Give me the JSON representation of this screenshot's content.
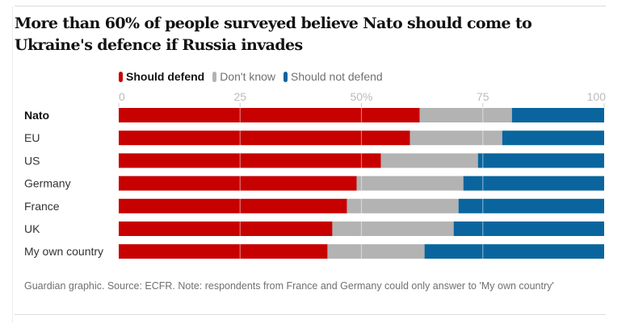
{
  "chart_data": {
    "type": "bar",
    "orientation": "horizontal",
    "stacked": true,
    "title": "More than 60% of people surveyed believe Nato should come to Ukraine's defence if Russia invades",
    "xlabel": "",
    "ylabel": "",
    "xlim": [
      0,
      100
    ],
    "x_ticks": [
      0,
      25,
      50,
      75,
      100
    ],
    "x_tick_labels": [
      "0",
      "25",
      "50%",
      "75",
      "100"
    ],
    "grid": true,
    "legend_position": "top",
    "categories": [
      "Nato",
      "EU",
      "US",
      "Germany",
      "France",
      "UK",
      "My own country"
    ],
    "series": [
      {
        "name": "Should defend",
        "color": "#c70000",
        "values": [
          62,
          60,
          54,
          49,
          47,
          44,
          43
        ]
      },
      {
        "name": "Don't know",
        "color": "#b3b3b3",
        "values": [
          19,
          19,
          20,
          22,
          23,
          25,
          20
        ]
      },
      {
        "name": "Should not defend",
        "color": "#0a659e",
        "values": [
          19,
          21,
          26,
          29,
          30,
          31,
          37
        ]
      }
    ],
    "note": "Guardian graphic. Source: ECFR. Note: respondents from France and Germany could only answer to 'My own country'"
  }
}
